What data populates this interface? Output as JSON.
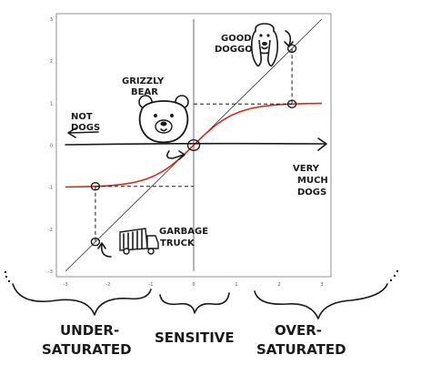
{
  "chart_data": {
    "type": "line",
    "title": "",
    "xlabel": "",
    "ylabel": "",
    "xlim": [
      -3,
      3
    ],
    "ylim": [
      -3,
      3
    ],
    "xticks": [
      "-3",
      "-2",
      "-1",
      "0",
      "1",
      "2",
      "3"
    ],
    "yticks": [
      "-3",
      "-2",
      "-1",
      "0",
      "1",
      "2",
      "3"
    ],
    "grid": false,
    "series": [
      {
        "x": [
          -3,
          -2,
          -1,
          0,
          1,
          2,
          3
        ],
        "y": [
          -3,
          -2,
          -1,
          0,
          1,
          2,
          3
        ],
        "color": "#333333"
      },
      {
        "x": [
          -3,
          -2.5,
          -2,
          -1.5,
          -1,
          -0.5,
          0,
          0.5,
          1,
          1.5,
          2,
          2.5,
          3
        ],
        "y": [
          -0.995,
          -0.987,
          -0.964,
          -0.905,
          -0.762,
          -0.462,
          0,
          0.462,
          0.762,
          0.905,
          0.964,
          0.987,
          0.995
        ],
        "color": "#d42a1e"
      }
    ],
    "markers": [
      {
        "x": 0,
        "y": 0
      },
      {
        "x": 2.3,
        "y": 2.3
      },
      {
        "x": 2.3,
        "y": 0.98
      },
      {
        "x": -2.3,
        "y": -0.98
      },
      {
        "x": -2.3,
        "y": -2.3
      }
    ]
  },
  "annotations": {
    "not_dogs": [
      "NOT",
      "DOGS"
    ],
    "very_much_dogs": [
      "VERY",
      "MUCH",
      "DOGS"
    ],
    "grizzly_bear": [
      "GRIZZLY",
      "BEAR"
    ],
    "good_doggo": [
      "GOOD",
      "DOGGO"
    ],
    "garbage_truck": [
      "GARBAGE",
      "TRUCK"
    ],
    "under_saturated": [
      "UNDER-",
      "SATURATED"
    ],
    "sensitive": "SENSITIVE",
    "over_saturated": [
      "OVER-",
      "SATURATED"
    ]
  }
}
